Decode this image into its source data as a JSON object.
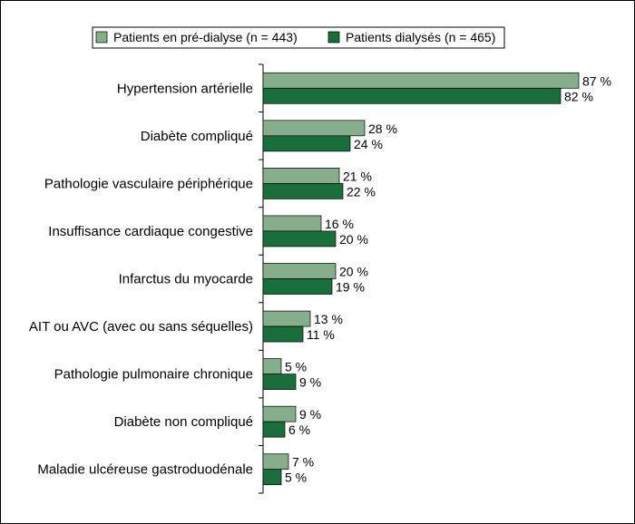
{
  "chart_data": {
    "type": "bar",
    "orientation": "horizontal",
    "categories": [
      "Hypertension artérielle",
      "Diabète compliqué",
      "Pathologie vasculaire périphérique",
      "Insuffisance cardiaque congestive",
      "Infarctus du myocarde",
      "AIT ou AVC (avec ou sans séquelles)",
      "Pathologie pulmonaire chronique",
      "Diabète non compliqué",
      "Maladie ulcéreuse gastroduodénale"
    ],
    "series": [
      {
        "name": "Patients en pré-dialyse (n = 443)",
        "color": "#86ae8c",
        "values": [
          87,
          28,
          21,
          16,
          20,
          13,
          5,
          9,
          7
        ],
        "labels": [
          "87 %",
          "28 %",
          "21 %",
          "16 %",
          "20 %",
          "13 %",
          "5 %",
          "9 %",
          "7 %"
        ]
      },
      {
        "name": "Patients dialysés (n = 465)",
        "color": "#1a6e3c",
        "values": [
          82,
          24,
          22,
          20,
          19,
          11,
          9,
          6,
          5
        ],
        "labels": [
          "82 %",
          "24 %",
          "22 %",
          "20 %",
          "19 %",
          "11 %",
          "9 %",
          "6 %",
          "5 %"
        ]
      }
    ],
    "xlim": [
      0,
      90
    ],
    "legend_position": "top",
    "grid": false
  }
}
